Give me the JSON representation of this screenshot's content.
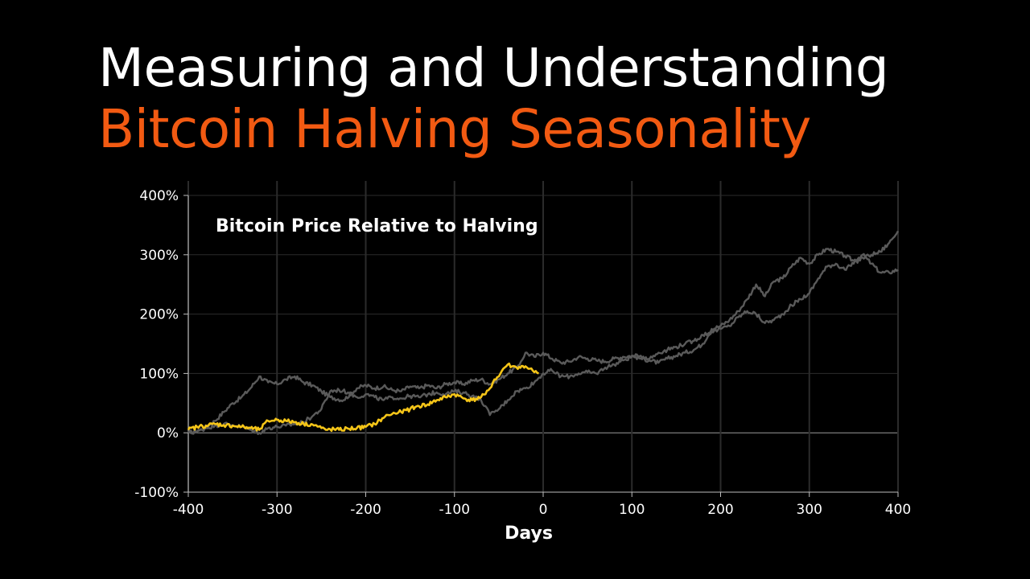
{
  "header": {
    "title_line1": "Measuring and Understanding",
    "title_line2": "Bitcoin Halving Seasonality",
    "title_line1_color": "#ffffff",
    "title_line2_color": "#f25a12"
  },
  "chart_data": {
    "type": "line",
    "title": "Bitcoin Price Relative to Halving",
    "xlabel": "Days",
    "ylabel": "",
    "xlim": [
      -400,
      400
    ],
    "ylim": [
      -100,
      400
    ],
    "x_ticks": [
      -400,
      -300,
      -200,
      -100,
      0,
      100,
      200,
      300,
      400
    ],
    "x_tick_labels": [
      "-400",
      "-300",
      "-200",
      "-100",
      "0",
      "100",
      "200",
      "300",
      "400"
    ],
    "y_ticks": [
      -100,
      0,
      100,
      200,
      300,
      400
    ],
    "y_tick_labels": [
      "-100%",
      "0%",
      "100%",
      "200%",
      "300%",
      "400%"
    ],
    "grid": true,
    "legend": "none",
    "colors": {
      "grid": "#2b2b2b",
      "zero_line": "#9a9a9a",
      "axis": "#bdbdbd",
      "historical": "#5a5a5a",
      "current": "#f5c518"
    },
    "series": [
      {
        "color": "#5a5a5a",
        "x": [
          -400,
          -385,
          -370,
          -360,
          -350,
          -340,
          -330,
          -320,
          -310,
          -300,
          -290,
          -280,
          -270,
          -260,
          -250,
          -240,
          -225,
          -210,
          -200,
          -190,
          -180,
          -170,
          -160,
          -150,
          -140,
          -130,
          -120,
          -110,
          -100,
          -90,
          -80,
          -70,
          -60,
          -50,
          -40,
          -30,
          -25,
          -20,
          -10,
          0,
          10,
          20,
          30,
          40,
          50,
          60,
          70,
          80,
          90,
          100,
          110,
          120,
          130,
          140,
          150,
          160,
          170,
          180,
          190,
          200,
          210,
          220,
          230,
          240,
          250,
          260,
          270,
          280,
          290,
          300,
          310,
          320,
          330,
          340,
          350,
          360,
          370,
          380,
          390,
          400
        ],
        "y": [
          0,
          5,
          20,
          35,
          50,
          60,
          75,
          95,
          85,
          82,
          90,
          95,
          85,
          80,
          70,
          60,
          55,
          75,
          80,
          75,
          78,
          72,
          70,
          78,
          75,
          80,
          75,
          82,
          85,
          82,
          88,
          90,
          82,
          90,
          100,
          110,
          120,
          135,
          128,
          135,
          125,
          118,
          120,
          128,
          125,
          122,
          120,
          125,
          128,
          130,
          125,
          122,
          118,
          125,
          130,
          135,
          140,
          150,
          175,
          180,
          190,
          205,
          225,
          250,
          230,
          255,
          260,
          280,
          295,
          285,
          300,
          310,
          305,
          298,
          290,
          300,
          285,
          270,
          270,
          275
        ]
      },
      {
        "color": "#5a5a5a",
        "x": [
          -400,
          -390,
          -380,
          -370,
          -360,
          -350,
          -340,
          -330,
          -320,
          -310,
          -300,
          -290,
          -280,
          -270,
          -260,
          -250,
          -240,
          -230,
          -220,
          -210,
          -200,
          -190,
          -180,
          -170,
          -160,
          -150,
          -140,
          -130,
          -120,
          -110,
          -100,
          -90,
          -80,
          -70,
          -65,
          -60,
          -55,
          -50,
          -40,
          -30,
          -20,
          -10,
          0,
          10,
          20,
          30,
          40,
          50,
          60,
          70,
          80,
          90,
          100,
          110,
          120,
          130,
          140,
          150,
          160,
          170,
          180,
          190,
          200,
          210,
          220,
          230,
          240,
          250,
          260,
          270,
          280,
          290,
          300,
          310,
          320,
          330,
          340,
          350,
          360,
          370,
          380,
          390,
          400
        ],
        "y": [
          0,
          2,
          8,
          12,
          15,
          13,
          10,
          5,
          0,
          8,
          10,
          12,
          15,
          18,
          28,
          40,
          70,
          72,
          68,
          60,
          65,
          60,
          55,
          60,
          58,
          62,
          60,
          65,
          68,
          65,
          70,
          68,
          62,
          55,
          45,
          30,
          35,
          40,
          55,
          70,
          75,
          85,
          100,
          105,
          95,
          95,
          100,
          102,
          100,
          110,
          115,
          122,
          128,
          130,
          125,
          135,
          140,
          145,
          150,
          155,
          165,
          170,
          175,
          180,
          195,
          205,
          200,
          185,
          190,
          200,
          215,
          225,
          235,
          260,
          280,
          285,
          275,
          285,
          295,
          300,
          305,
          320,
          340
        ]
      },
      {
        "color": "#f5c518",
        "x": [
          -400,
          -390,
          -380,
          -370,
          -360,
          -350,
          -340,
          -330,
          -320,
          -310,
          -300,
          -290,
          -280,
          -270,
          -260,
          -250,
          -245,
          -240,
          -230,
          -220,
          -210,
          -200,
          -190,
          -180,
          -175,
          -170,
          -160,
          -150,
          -140,
          -130,
          -120,
          -110,
          -100,
          -95,
          -90,
          -80,
          -70,
          -65,
          -60,
          -55,
          -50,
          -45,
          -40,
          -35,
          -30,
          -20,
          -15,
          -10,
          -5
        ],
        "y": [
          5,
          10,
          12,
          15,
          13,
          12,
          10,
          8,
          5,
          20,
          22,
          20,
          18,
          15,
          14,
          8,
          5,
          6,
          5,
          7,
          8,
          10,
          15,
          25,
          30,
          32,
          35,
          40,
          45,
          48,
          55,
          60,
          65,
          62,
          58,
          55,
          60,
          65,
          75,
          90,
          95,
          108,
          115,
          112,
          110,
          112,
          108,
          102,
          100
        ]
      }
    ]
  }
}
